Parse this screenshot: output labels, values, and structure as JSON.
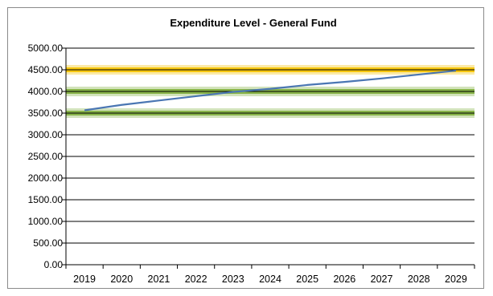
{
  "chart_data": {
    "type": "line",
    "title": "Expenditure Level - General Fund",
    "xlabel": "",
    "ylabel": "",
    "categories": [
      "2019",
      "2020",
      "2021",
      "2022",
      "2023",
      "2024",
      "2025",
      "2026",
      "2027",
      "2028",
      "2029"
    ],
    "ylim": [
      0,
      5000
    ],
    "ytick_labels": [
      "0.00",
      "500.00",
      "1000.00",
      "1500.00",
      "2000.00",
      "2500.00",
      "3000.00",
      "3500.00",
      "4000.00",
      "4500.00",
      "5000.00"
    ],
    "series": [
      {
        "values": [
          3565,
          3690,
          3790,
          3890,
          3990,
          4060,
          4150,
          4220,
          4300,
          4390,
          4480
        ],
        "color": "#4a76b3"
      }
    ],
    "bands": [
      {
        "y": 4500,
        "color": "#f5c200"
      },
      {
        "y": 4000,
        "color": "#7fae3c"
      },
      {
        "y": 3500,
        "color": "#7fae3c"
      }
    ],
    "grid": true,
    "legend": "none"
  }
}
